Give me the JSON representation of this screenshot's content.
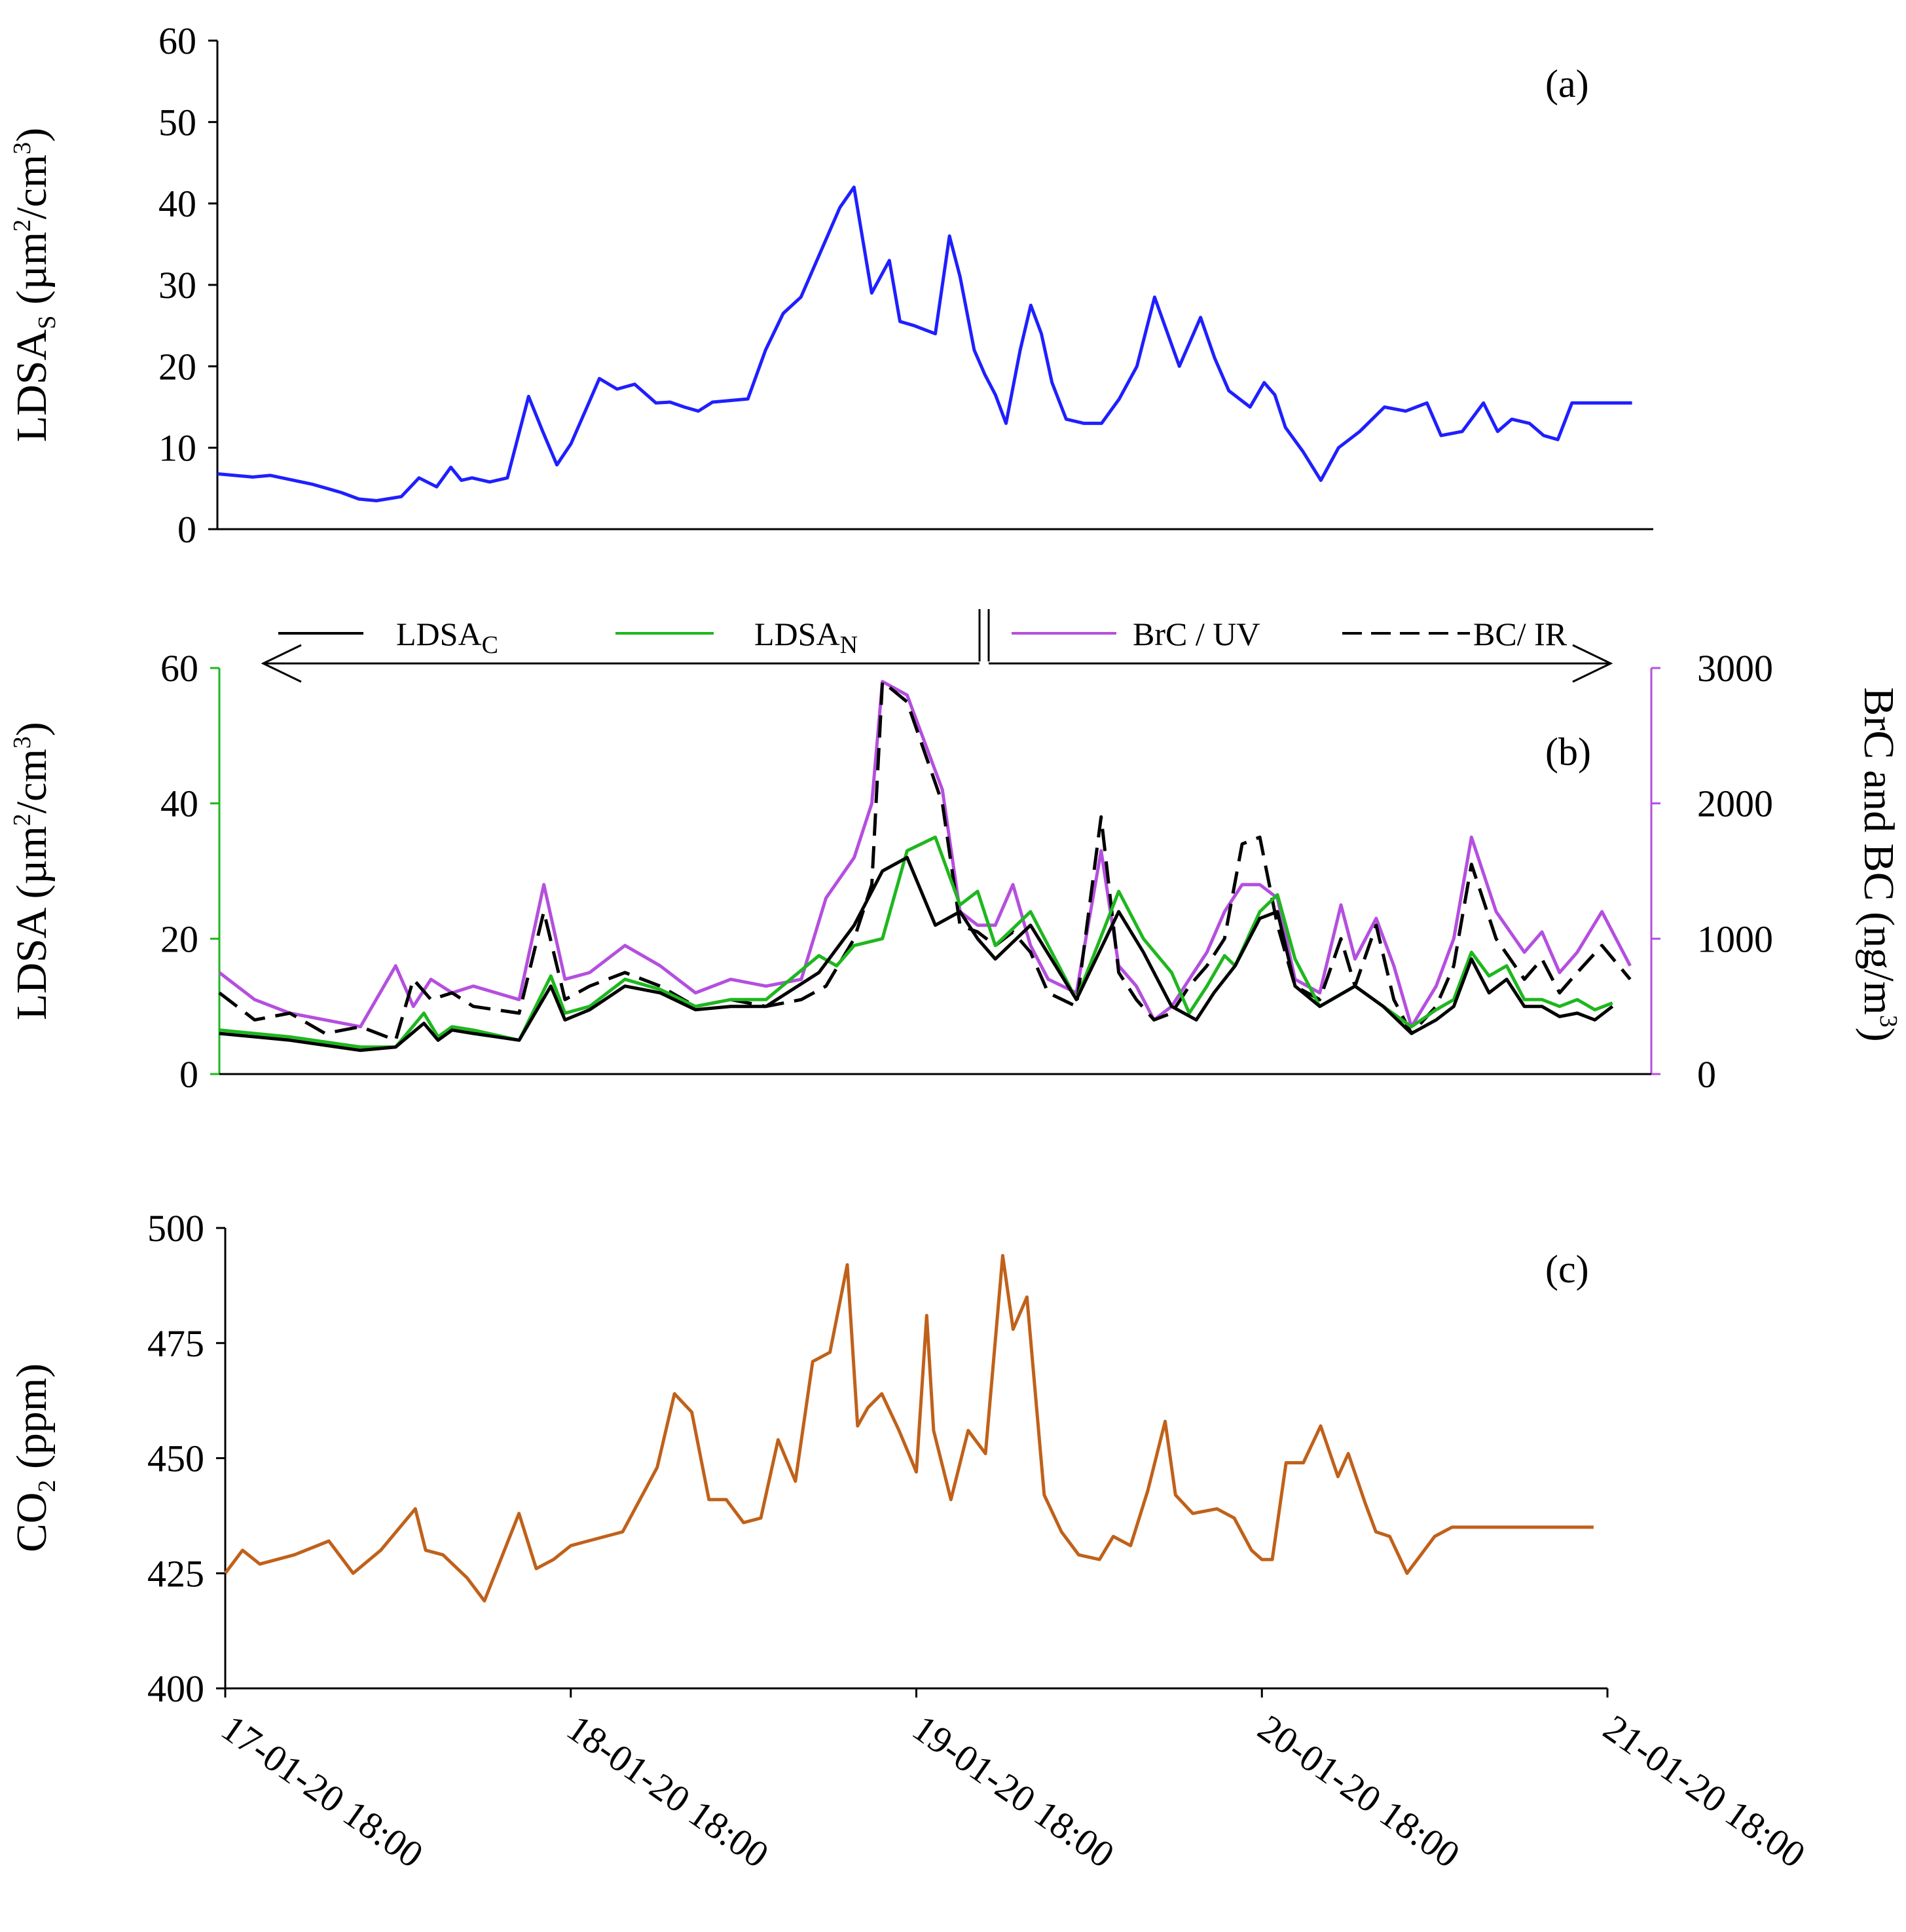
{
  "chart_data": [
    {
      "panel": "(a)",
      "type": "line",
      "ylabel_main": "LDSA",
      "ylabel_sub": "S",
      "ylabel_unit_pre": " (µm",
      "ylabel_sup1": "2",
      "ylabel_unit_mid": "/cm",
      "ylabel_sup2": "3",
      "ylabel_unit_post": ")",
      "ylim": [
        0,
        60
      ],
      "yticks": [
        "0",
        "10",
        "20",
        "30",
        "40",
        "50",
        "60"
      ],
      "xlim": [
        0,
        4
      ],
      "series": [
        {
          "name": "LDSA_S",
          "color": "#1f1fff",
          "x": [
            0,
            0.1,
            0.15,
            0.27,
            0.35,
            0.4,
            0.45,
            0.52,
            0.57,
            0.62,
            0.66,
            0.69,
            0.72,
            0.77,
            0.82,
            0.88,
            0.92,
            0.96,
            1.0,
            1.04,
            1.08,
            1.13,
            1.18,
            1.24,
            1.28,
            1.32,
            1.36,
            1.4,
            1.5,
            1.55,
            1.6,
            1.65,
            1.72,
            1.76,
            1.8,
            1.85,
            1.9,
            1.93,
            1.97,
            2.03,
            2.07,
            2.1,
            2.14,
            2.17,
            2.2,
            2.23,
            2.27,
            2.3,
            2.33,
            2.36,
            2.4,
            2.45,
            2.5,
            2.55,
            2.6,
            2.65,
            2.72,
            2.78,
            2.82,
            2.86,
            2.92,
            2.96,
            2.99,
            3.02,
            3.07,
            3.12,
            3.17,
            3.23,
            3.3,
            3.36,
            3.42,
            3.46,
            3.52,
            3.58,
            3.62,
            3.66,
            3.71,
            3.75,
            3.79,
            3.83,
            3.87,
            3.93,
            3.97,
            4.0
          ],
          "values": [
            6.8,
            6.4,
            6.6,
            5.5,
            4.5,
            3.7,
            3.5,
            4.0,
            6.3,
            5.2,
            7.6,
            6.0,
            6.3,
            5.8,
            6.3,
            16.3,
            12.0,
            7.9,
            10.5,
            14.5,
            18.5,
            17.2,
            17.8,
            15.5,
            15.6,
            15.0,
            14.5,
            15.6,
            16.0,
            22.0,
            26.5,
            28.5,
            35.5,
            39.5,
            42.0,
            29.0,
            33.0,
            25.5,
            25.0,
            24.0,
            36.0,
            31.0,
            22.0,
            19.0,
            16.5,
            13.0,
            22.0,
            27.5,
            24.0,
            18.0,
            13.5,
            13.0,
            13.0,
            16.0,
            20.0,
            28.5,
            20.0,
            26.0,
            21.0,
            17.0,
            15.0,
            18.0,
            16.5,
            12.5,
            9.5,
            6.0,
            10.0,
            12.0,
            15.0,
            14.5,
            15.5,
            11.5,
            12.0,
            15.5,
            12.0,
            13.5,
            13.0,
            11.5,
            11.0,
            15.5,
            15.5,
            15.5,
            15.5,
            15.5
          ]
        }
      ]
    },
    {
      "panel": "(b)",
      "type": "line",
      "ylabel_main": "LDSA",
      "ylabel_unit_pre": " (µm",
      "ylabel_sup1": "2",
      "ylabel_unit_mid": "/cm",
      "ylabel_sup2": "3",
      "ylabel_unit_post": ")",
      "ylim": [
        0,
        60
      ],
      "yticks": [
        "0",
        "20",
        "40",
        "60"
      ],
      "y2label_main": "BrC and BC (ng/m",
      "y2label_sup": "3",
      "y2label_post": ")",
      "y2lim": [
        0,
        3000
      ],
      "y2ticks": [
        "0",
        "1000",
        "2000",
        "3000"
      ],
      "xlim": [
        0,
        4
      ],
      "legend": [
        {
          "label": "LDSA",
          "sub": "C"
        },
        {
          "label": "LDSA",
          "sub": "N"
        },
        {
          "label": "BrC / UV"
        },
        {
          "label": "BC/ IR"
        }
      ],
      "series": [
        {
          "name": "LDSA_C",
          "color": "#000000",
          "axis": "left",
          "x": [
            0,
            0.2,
            0.4,
            0.5,
            0.58,
            0.62,
            0.66,
            0.72,
            0.85,
            0.94,
            0.98,
            1.05,
            1.15,
            1.25,
            1.35,
            1.45,
            1.55,
            1.7,
            1.8,
            1.88,
            1.95,
            2.03,
            2.1,
            2.15,
            2.2,
            2.3,
            2.43,
            2.55,
            2.62,
            2.7,
            2.77,
            2.82,
            2.88,
            2.95,
            3.0,
            3.05,
            3.12,
            3.22,
            3.3,
            3.38,
            3.45,
            3.5,
            3.55,
            3.6,
            3.65,
            3.7,
            3.75,
            3.8,
            3.85,
            3.9,
            3.95
          ],
          "values": [
            6,
            5,
            3.5,
            4,
            7.5,
            5,
            6.5,
            6,
            5,
            13,
            8,
            9.5,
            13,
            12,
            9.5,
            10,
            10,
            15,
            22,
            30,
            32,
            22,
            24,
            20,
            17,
            22,
            11,
            24,
            18,
            10,
            8,
            12,
            16,
            23,
            24,
            13,
            10,
            13,
            10,
            6,
            8,
            10,
            17,
            12,
            14,
            10,
            10,
            8.5,
            9,
            8,
            10
          ]
        },
        {
          "name": "LDSA_N",
          "color": "#1eb71e",
          "axis": "left",
          "x": [
            0,
            0.2,
            0.4,
            0.5,
            0.58,
            0.62,
            0.66,
            0.72,
            0.85,
            0.94,
            0.98,
            1.05,
            1.15,
            1.25,
            1.35,
            1.45,
            1.55,
            1.7,
            1.75,
            1.8,
            1.88,
            1.95,
            2.03,
            2.1,
            2.15,
            2.2,
            2.3,
            2.43,
            2.55,
            2.62,
            2.7,
            2.75,
            2.8,
            2.85,
            2.88,
            2.95,
            3.0,
            3.05,
            3.12,
            3.22,
            3.3,
            3.38,
            3.45,
            3.5,
            3.55,
            3.6,
            3.65,
            3.7,
            3.75,
            3.8,
            3.85,
            3.9,
            3.95
          ],
          "values": [
            6.5,
            5.5,
            4,
            4,
            9,
            5.5,
            7,
            6.5,
            5,
            14.5,
            9,
            10,
            14,
            12.5,
            10,
            11,
            11,
            17.5,
            16,
            19,
            20,
            33,
            35,
            25,
            27,
            19,
            24,
            11,
            27,
            20,
            15,
            9,
            13,
            17.5,
            16,
            24,
            26.5,
            17,
            10,
            13,
            10,
            7,
            9.5,
            11,
            18,
            14.5,
            16,
            11,
            11,
            10,
            11,
            9.5,
            10.5
          ]
        },
        {
          "name": "BrC / UV",
          "color": "#b44fdf",
          "axis": "right",
          "x": [
            0,
            0.1,
            0.2,
            0.3,
            0.4,
            0.5,
            0.55,
            0.6,
            0.66,
            0.72,
            0.85,
            0.92,
            0.98,
            1.05,
            1.15,
            1.25,
            1.35,
            1.45,
            1.55,
            1.65,
            1.72,
            1.8,
            1.85,
            1.88,
            1.95,
            2.05,
            2.1,
            2.15,
            2.2,
            2.25,
            2.3,
            2.35,
            2.43,
            2.5,
            2.55,
            2.6,
            2.65,
            2.7,
            2.75,
            2.8,
            2.85,
            2.9,
            2.95,
            3.0,
            3.05,
            3.12,
            3.18,
            3.22,
            3.28,
            3.33,
            3.38,
            3.45,
            3.5,
            3.55,
            3.62,
            3.7,
            3.75,
            3.8,
            3.85,
            3.92,
            4.0
          ],
          "values": [
            750,
            550,
            450,
            400,
            350,
            800,
            500,
            700,
            600,
            650,
            550,
            1400,
            700,
            750,
            950,
            800,
            600,
            700,
            650,
            700,
            1300,
            1600,
            2000,
            2900,
            2800,
            2100,
            1200,
            1100,
            1100,
            1400,
            950,
            700,
            600,
            1650,
            800,
            650,
            400,
            500,
            700,
            900,
            1200,
            1400,
            1400,
            1300,
            700,
            600,
            1250,
            850,
            1150,
            800,
            350,
            650,
            1000,
            1750,
            1200,
            900,
            1050,
            750,
            900,
            1200,
            800
          ]
        },
        {
          "name": "BC/ IR",
          "color": "#000000",
          "dashed": true,
          "axis": "right",
          "x": [
            0,
            0.1,
            0.2,
            0.3,
            0.4,
            0.5,
            0.55,
            0.6,
            0.66,
            0.72,
            0.85,
            0.92,
            0.98,
            1.05,
            1.15,
            1.25,
            1.35,
            1.45,
            1.55,
            1.65,
            1.72,
            1.8,
            1.85,
            1.88,
            1.95,
            2.05,
            2.1,
            2.15,
            2.2,
            2.25,
            2.3,
            2.35,
            2.43,
            2.5,
            2.55,
            2.6,
            2.65,
            2.7,
            2.75,
            2.8,
            2.85,
            2.9,
            2.95,
            3.0,
            3.05,
            3.12,
            3.18,
            3.22,
            3.28,
            3.33,
            3.38,
            3.45,
            3.5,
            3.55,
            3.62,
            3.7,
            3.75,
            3.8,
            3.85,
            3.92,
            4.0
          ],
          "values": [
            600,
            400,
            450,
            300,
            350,
            250,
            700,
            550,
            600,
            500,
            450,
            1200,
            550,
            650,
            750,
            650,
            500,
            550,
            500,
            550,
            650,
            1000,
            1400,
            2900,
            2750,
            2000,
            1100,
            1050,
            950,
            1050,
            900,
            600,
            500,
            1900,
            750,
            550,
            400,
            450,
            650,
            800,
            1000,
            1700,
            1750,
            1100,
            650,
            550,
            1000,
            650,
            1100,
            550,
            300,
            500,
            800,
            1550,
            1000,
            700,
            850,
            600,
            750,
            950,
            700
          ]
        }
      ]
    },
    {
      "panel": "(c)",
      "type": "line",
      "ylabel_main": "CO",
      "ylabel_sub": "2",
      "ylabel_unit_post": " (ppm)",
      "ylim": [
        400,
        500
      ],
      "yticks": [
        "400",
        "425",
        "450",
        "475",
        "500"
      ],
      "xlim": [
        0,
        4
      ],
      "xticks": [
        "17-01-20 18:00",
        "18-01-20 18:00",
        "19-01-20 18:00",
        "20-01-20 18:00",
        "21-01-20 18:00"
      ],
      "series": [
        {
          "name": "CO2",
          "color": "#c0611a",
          "x": [
            0,
            0.05,
            0.1,
            0.2,
            0.3,
            0.37,
            0.45,
            0.55,
            0.58,
            0.63,
            0.7,
            0.75,
            0.85,
            0.9,
            0.95,
            1.0,
            1.05,
            1.15,
            1.25,
            1.3,
            1.35,
            1.4,
            1.45,
            1.5,
            1.55,
            1.6,
            1.65,
            1.7,
            1.75,
            1.8,
            1.83,
            1.86,
            1.9,
            1.95,
            2.0,
            2.03,
            2.05,
            2.1,
            2.15,
            2.2,
            2.25,
            2.28,
            2.32,
            2.37,
            2.42,
            2.47,
            2.53,
            2.57,
            2.62,
            2.67,
            2.72,
            2.75,
            2.8,
            2.87,
            2.92,
            2.97,
            3.0,
            3.03,
            3.07,
            3.12,
            3.17,
            3.22,
            3.25,
            3.3,
            3.33,
            3.37,
            3.42,
            3.45,
            3.5,
            3.55,
            3.6,
            3.66,
            3.72,
            3.75,
            3.8,
            3.85,
            3.92,
            3.96
          ],
          "values": [
            425,
            430,
            427,
            429,
            432,
            425,
            430,
            439,
            430,
            429,
            424,
            419,
            438,
            426,
            428,
            431,
            432,
            434,
            448,
            464,
            460,
            441,
            441,
            436,
            437,
            454,
            445,
            471,
            473,
            492,
            457,
            461,
            464,
            456,
            447,
            481,
            456,
            441,
            456,
            451,
            494,
            478,
            485,
            442,
            434,
            429,
            428,
            433,
            431,
            443,
            458,
            442,
            438,
            439,
            437,
            430,
            428,
            428,
            449,
            449,
            457,
            446,
            451,
            440,
            434,
            433,
            425,
            428,
            433,
            435,
            435,
            435,
            435,
            435,
            435,
            435,
            435,
            435
          ]
        }
      ]
    }
  ]
}
